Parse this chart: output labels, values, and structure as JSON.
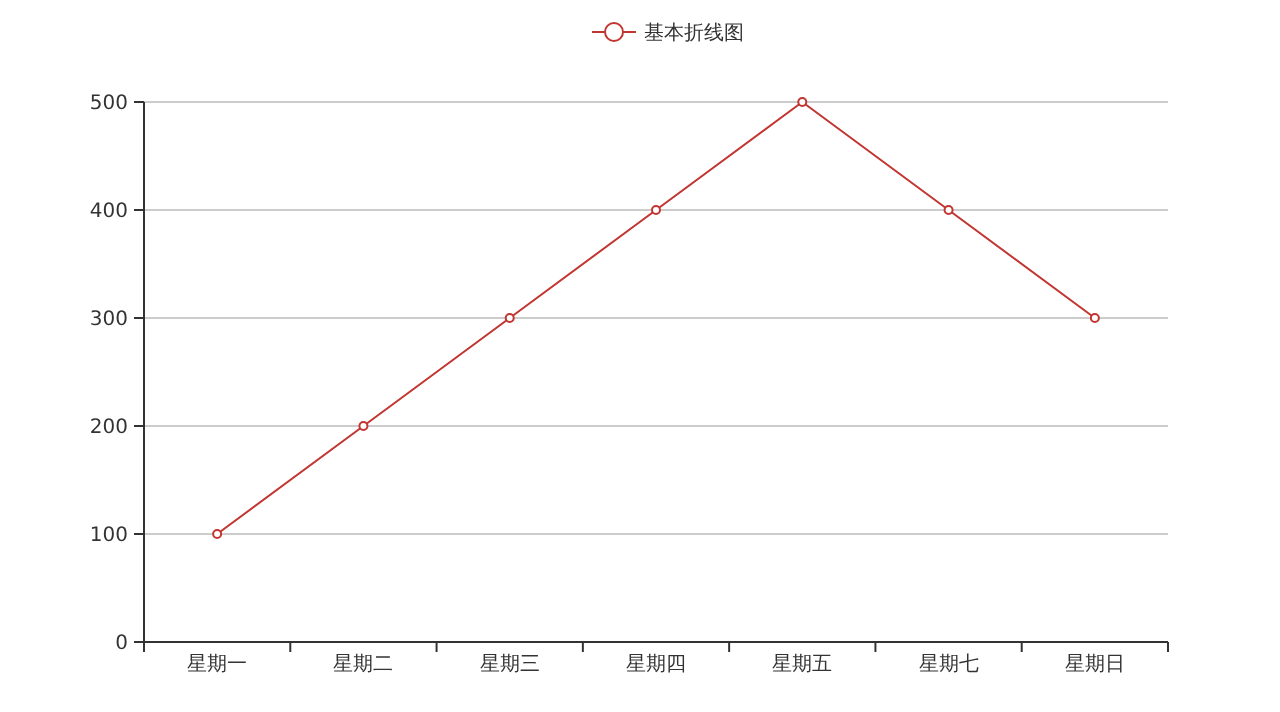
{
  "chart_data": {
    "type": "line",
    "categories": [
      "星期一",
      "星期二",
      "星期三",
      "星期四",
      "星期五",
      "星期七",
      "星期日"
    ],
    "series": [
      {
        "name": "基本折线图",
        "color": "#c23531",
        "values": [
          100,
          200,
          300,
          400,
          500,
          400,
          300
        ]
      }
    ],
    "ylim": [
      0,
      500
    ],
    "yticks": [
      0,
      100,
      200,
      300,
      400,
      500
    ],
    "grid": "y",
    "legend": "top",
    "marker": "circle",
    "line_style": "solid"
  }
}
